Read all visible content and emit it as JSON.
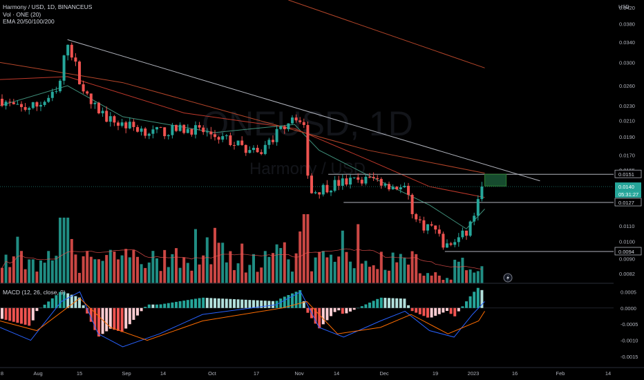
{
  "header": {
    "symbol_line": "Harmony / USD, 1D, BINANCEUS",
    "volume_line": "Vol · ONE (20)",
    "ema_line": "EMA 20/50/100/200",
    "macd_line": "MACD (12, 26, close, 9)"
  },
  "watermark": {
    "ticker": "ONEUSD, 1D",
    "name": "Harmony / USD"
  },
  "price_axis": {
    "currency": "USD",
    "ticks": [
      "0.0420",
      "0.0380",
      "0.0340",
      "0.0300",
      "0.0260",
      "0.0230",
      "0.0210",
      "0.0190",
      "0.0170",
      "0.0155",
      "0.0110",
      "0.0100",
      "0.0090",
      "0.0082"
    ],
    "badges": {
      "upper_level": "0.0151",
      "last_price": "0.0140",
      "countdown": "05:31:27",
      "lower_level": "0.0127",
      "support_level": "0.0094"
    }
  },
  "macd_axis": {
    "ticks": [
      "0.0005",
      "0.0000",
      "-0.0005",
      "-0.0010",
      "-0.0015"
    ]
  },
  "time_axis": {
    "labels": [
      "8",
      "Aug",
      "15",
      "Sep",
      "14",
      "Oct",
      "17",
      "Nov",
      "14",
      "Dec",
      "19",
      "2023",
      "16",
      "Feb",
      "14"
    ]
  },
  "chart_data": {
    "type": "candlestick",
    "symbol": "ONEUSD",
    "interval": "1D",
    "exchange": "BINANCEUS",
    "price_scale": "log",
    "price_range": [
      0.0078,
      0.044
    ],
    "last_price": 0.014,
    "horizontal_levels": [
      0.0151,
      0.0127,
      0.0094
    ],
    "price_path": [
      {
        "x": 0.0,
        "c": 0.024
      },
      {
        "x": 0.03,
        "c": 0.0225
      },
      {
        "x": 0.06,
        "c": 0.023
      },
      {
        "x": 0.095,
        "c": 0.025
      },
      {
        "x": 0.11,
        "c": 0.0345
      },
      {
        "x": 0.13,
        "c": 0.027
      },
      {
        "x": 0.145,
        "c": 0.0235
      },
      {
        "x": 0.18,
        "c": 0.021
      },
      {
        "x": 0.25,
        "c": 0.0195
      },
      {
        "x": 0.31,
        "c": 0.02
      },
      {
        "x": 0.36,
        "c": 0.019
      },
      {
        "x": 0.42,
        "c": 0.017
      },
      {
        "x": 0.48,
        "c": 0.022
      },
      {
        "x": 0.495,
        "c": 0.02
      },
      {
        "x": 0.505,
        "c": 0.0135
      },
      {
        "x": 0.55,
        "c": 0.0143
      },
      {
        "x": 0.61,
        "c": 0.0147
      },
      {
        "x": 0.66,
        "c": 0.0137
      },
      {
        "x": 0.68,
        "c": 0.0112
      },
      {
        "x": 0.71,
        "c": 0.0108
      },
      {
        "x": 0.725,
        "c": 0.0096
      },
      {
        "x": 0.76,
        "c": 0.0105
      },
      {
        "x": 0.79,
        "c": 0.014
      }
    ],
    "ema": {
      "ema20": [
        [
          0.0,
          0.023
        ],
        [
          0.11,
          0.026
        ],
        [
          0.2,
          0.0215
        ],
        [
          0.35,
          0.0195
        ],
        [
          0.48,
          0.0205
        ],
        [
          0.52,
          0.0175
        ],
        [
          0.6,
          0.015
        ],
        [
          0.7,
          0.0125
        ],
        [
          0.76,
          0.0108
        ],
        [
          0.79,
          0.0122
        ]
      ],
      "ema50": [
        [
          0.0,
          0.027
        ],
        [
          0.11,
          0.0275
        ],
        [
          0.3,
          0.022
        ],
        [
          0.48,
          0.02
        ],
        [
          0.6,
          0.0165
        ],
        [
          0.7,
          0.014
        ],
        [
          0.79,
          0.0131
        ]
      ],
      "ema100": [
        [
          0.0,
          0.03
        ],
        [
          0.2,
          0.0265
        ],
        [
          0.4,
          0.0215
        ],
        [
          0.6,
          0.0175
        ],
        [
          0.79,
          0.0152
        ]
      ],
      "ema200": [
        [
          0.47,
          0.044
        ],
        [
          0.79,
          0.029
        ]
      ]
    },
    "trendline": [
      [
        0.11,
        0.0345
      ],
      [
        0.88,
        0.0145
      ]
    ],
    "macd": {
      "range": [
        -0.0018,
        0.0007
      ],
      "macd_line": [
        [
          0.0,
          -0.0006
        ],
        [
          0.05,
          -0.001
        ],
        [
          0.1,
          0.0002
        ],
        [
          0.13,
          0.0005
        ],
        [
          0.16,
          -0.0008
        ],
        [
          0.2,
          -0.0012
        ],
        [
          0.26,
          -0.0008
        ],
        [
          0.33,
          -0.0002
        ],
        [
          0.45,
          0.0001
        ],
        [
          0.49,
          0.0005
        ],
        [
          0.52,
          -0.0006
        ],
        [
          0.56,
          -0.0009
        ],
        [
          0.62,
          -0.0004
        ],
        [
          0.66,
          -0.0001
        ],
        [
          0.7,
          -0.0007
        ],
        [
          0.74,
          -0.0009
        ],
        [
          0.77,
          -0.0002
        ],
        [
          0.79,
          0.0002
        ]
      ],
      "signal_line": [
        [
          0.0,
          -0.0004
        ],
        [
          0.06,
          -0.0007
        ],
        [
          0.13,
          0.0003
        ],
        [
          0.18,
          -0.0006
        ],
        [
          0.24,
          -0.001
        ],
        [
          0.33,
          -0.0004
        ],
        [
          0.46,
          0.0
        ],
        [
          0.5,
          0.0002
        ],
        [
          0.55,
          -0.0008
        ],
        [
          0.62,
          -0.0006
        ],
        [
          0.67,
          -0.0002
        ],
        [
          0.73,
          -0.0008
        ],
        [
          0.78,
          -0.0004
        ],
        [
          0.79,
          -0.0001
        ]
      ]
    }
  }
}
